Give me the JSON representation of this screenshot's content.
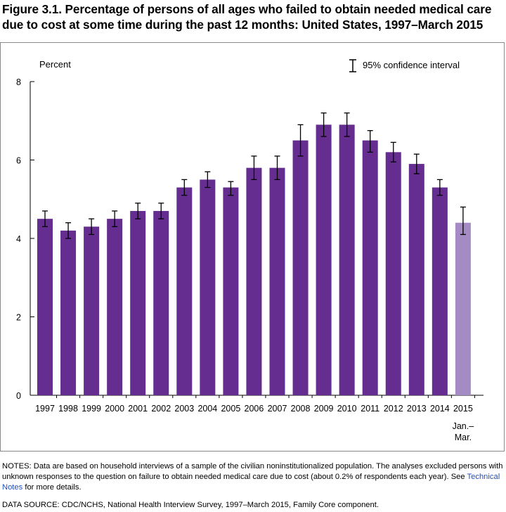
{
  "figure": {
    "title": "Figure 3.1. Percentage of persons of all ages who failed to obtain needed medical care due to cost at some time during the past 12 months: United States, 1997–March 2015",
    "notes_prefix": "NOTES: Data are based on household interviews of a sample of the civilian noninstitutionalized population. The analyses excluded persons with unknown responses to the question on failure to obtain needed medical care due to cost (about 0.2% of respondents each year). See ",
    "notes_link": "Technical Notes",
    "notes_suffix": " for more details.",
    "source": "DATA SOURCE: CDC/NCHS, National Health Interview Survey, 1997–March 2015, Family Core component."
  },
  "colors": {
    "bar": "#662d91",
    "bar_partial": "#a58bc4",
    "axis": "#000000",
    "frame": "#8a8a8a"
  },
  "chart_data": {
    "type": "bar",
    "title": "",
    "xlabel": "",
    "ylabel": "Percent",
    "ylim": [
      0,
      8
    ],
    "yticks": [
      0,
      2,
      4,
      6,
      8
    ],
    "grid": false,
    "legend": {
      "label": "95% confidence interval",
      "placement": "top-right"
    },
    "categories": [
      "1997",
      "1998",
      "1999",
      "2000",
      "2001",
      "2002",
      "2003",
      "2004",
      "2005",
      "2006",
      "2007",
      "2008",
      "2009",
      "2010",
      "2011",
      "2012",
      "2013",
      "2014",
      "2015"
    ],
    "category_sublabels": {
      "2015": [
        "Jan.–",
        "Mar."
      ]
    },
    "values": [
      4.5,
      4.2,
      4.3,
      4.5,
      4.7,
      4.7,
      5.3,
      5.5,
      5.3,
      5.8,
      5.8,
      6.5,
      6.9,
      6.9,
      6.5,
      6.2,
      5.9,
      5.3,
      4.4
    ],
    "ci_lower": [
      4.3,
      4.0,
      4.1,
      4.3,
      4.5,
      4.5,
      5.1,
      5.3,
      5.1,
      5.5,
      5.5,
      6.1,
      6.6,
      6.6,
      6.2,
      5.95,
      5.65,
      5.1,
      4.1
    ],
    "ci_upper": [
      4.7,
      4.4,
      4.5,
      4.7,
      4.9,
      4.9,
      5.5,
      5.7,
      5.45,
      6.1,
      6.1,
      6.9,
      7.2,
      7.2,
      6.75,
      6.45,
      6.15,
      5.5,
      4.8
    ],
    "partial_year": [
      "2015"
    ]
  }
}
